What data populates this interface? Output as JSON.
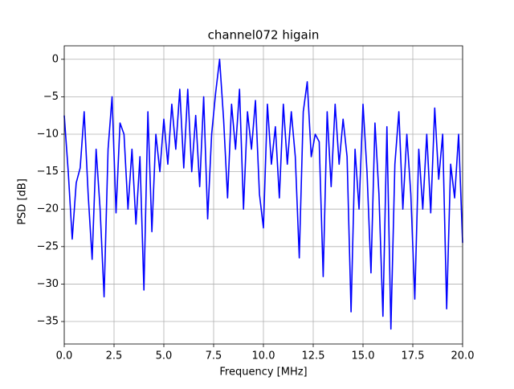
{
  "chart_data": {
    "type": "line",
    "title": "channel072 higain",
    "xlabel": "Frequency [MHz]",
    "ylabel": "PSD [dB]",
    "x": [
      0,
      0.2,
      0.4,
      0.6,
      0.8,
      1,
      1.2,
      1.4,
      1.6,
      1.8,
      2,
      2.2,
      2.4,
      2.6,
      2.8,
      3,
      3.2,
      3.4,
      3.6,
      3.8,
      4,
      4.2,
      4.4,
      4.6,
      4.8,
      5,
      5.2,
      5.4,
      5.6,
      5.8,
      6,
      6.2,
      6.4,
      6.6,
      6.8,
      7,
      7.2,
      7.4,
      7.6,
      7.8,
      8,
      8.2,
      8.4,
      8.6,
      8.8,
      9,
      9.2,
      9.4,
      9.6,
      9.8,
      10,
      10.2,
      10.4,
      10.6,
      10.8,
      11,
      11.2,
      11.4,
      11.6,
      11.8,
      12,
      12.2,
      12.4,
      12.6,
      12.8,
      13,
      13.2,
      13.4,
      13.6,
      13.8,
      14,
      14.2,
      14.4,
      14.6,
      14.8,
      15,
      15.2,
      15.4,
      15.6,
      15.8,
      16,
      16.2,
      16.4,
      16.6,
      16.8,
      17,
      17.2,
      17.4,
      17.6,
      17.8,
      18,
      18.2,
      18.4,
      18.6,
      18.8,
      19,
      19.2,
      19.4,
      19.6,
      19.8,
      20
    ],
    "series": [
      {
        "name": "PSD",
        "color": "#0000ff",
        "values": [
          -7.5,
          -15,
          -24,
          -16.5,
          -14.5,
          -7,
          -18,
          -26.7,
          -12,
          -20,
          -31.7,
          -12,
          -5,
          -20.5,
          -8.5,
          -10,
          -20,
          -12,
          -22,
          -13,
          -30.8,
          -7,
          -23,
          -10,
          -15,
          -8,
          -14,
          -6,
          -12,
          -4,
          -14.5,
          -4,
          -15,
          -7.5,
          -17,
          -5,
          -21.3,
          -10,
          -4.5,
          0,
          -8,
          -18.5,
          -6,
          -12,
          -4,
          -20,
          -7,
          -12,
          -5.5,
          -18,
          -22.5,
          -6,
          -14,
          -9,
          -18.5,
          -6,
          -14,
          -7,
          -13,
          -26.5,
          -7,
          -3,
          -13,
          -10,
          -11,
          -29,
          -7,
          -17,
          -6,
          -14,
          -8,
          -13,
          -33.7,
          -12,
          -20,
          -6,
          -15,
          -28.5,
          -8.5,
          -18,
          -34.3,
          -9,
          -36,
          -14,
          -7,
          -20,
          -10,
          -18,
          -32,
          -12,
          -20,
          -10,
          -20.5,
          -6.5,
          -16,
          -10,
          -33.3,
          -14,
          -18.5,
          -10,
          -24.5
        ]
      }
    ],
    "xlim": [
      0,
      20
    ],
    "ylim": [
      -38,
      1.8
    ],
    "xticks": [
      {
        "value": 0,
        "label": "0.0"
      },
      2.5,
      {
        "value": 5,
        "label": "5.0"
      },
      7.5,
      {
        "value": 10,
        "label": "10.0"
      },
      12.5,
      {
        "value": 15,
        "label": "15.0"
      },
      17.5,
      {
        "value": 20,
        "label": "20.0"
      }
    ],
    "yticks": [
      0,
      {
        "value": -5,
        "label": "−5"
      },
      {
        "value": -10,
        "label": "−10"
      },
      {
        "value": -15,
        "label": "−15"
      },
      {
        "value": -20,
        "label": "−20"
      },
      {
        "value": -25,
        "label": "−25"
      },
      {
        "value": -30,
        "label": "−30"
      },
      {
        "value": -35,
        "label": "−35"
      }
    ],
    "grid": true
  }
}
